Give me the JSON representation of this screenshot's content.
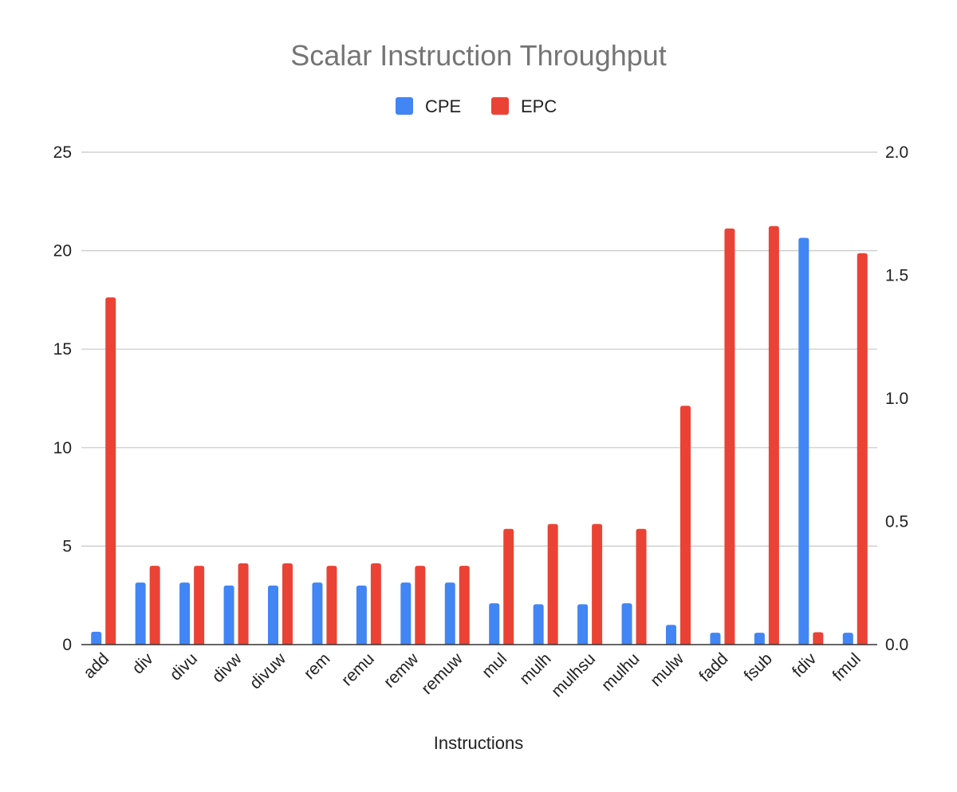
{
  "chart_data": {
    "type": "bar",
    "title": "Scalar Instruction Throughput",
    "xlabel": "Instructions",
    "categories": [
      "add",
      "div",
      "divu",
      "divw",
      "divuw",
      "rem",
      "remu",
      "remw",
      "remuw",
      "mul",
      "mulh",
      "mulhsu",
      "mulhu",
      "mulw",
      "fadd",
      "fsub",
      "fdiv",
      "fmul"
    ],
    "series": [
      {
        "name": "CPE",
        "axis": "left",
        "color": "#4285f4",
        "values": [
          0.65,
          3.15,
          3.15,
          3.0,
          3.0,
          3.15,
          3.0,
          3.15,
          3.15,
          2.1,
          2.05,
          2.05,
          2.1,
          1.0,
          0.6,
          0.6,
          20.65,
          0.6
        ]
      },
      {
        "name": "EPC",
        "axis": "right",
        "color": "#ea4335",
        "values": [
          1.41,
          0.32,
          0.32,
          0.33,
          0.33,
          0.32,
          0.33,
          0.32,
          0.32,
          0.47,
          0.49,
          0.49,
          0.47,
          0.97,
          1.69,
          1.7,
          0.05,
          1.59
        ]
      }
    ],
    "y_left": {
      "ylim": [
        0,
        25
      ],
      "ticks": [
        "0",
        "5",
        "10",
        "15",
        "20",
        "25"
      ]
    },
    "y_right": {
      "ylim": [
        0,
        2.0
      ],
      "ticks": [
        "0.0",
        "0.5",
        "1.0",
        "1.5",
        "2.0"
      ]
    },
    "grid": true,
    "legend": "top-center"
  }
}
